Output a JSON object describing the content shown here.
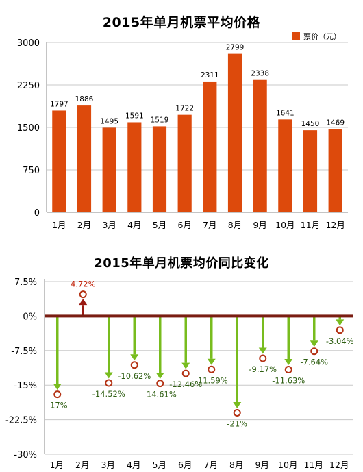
{
  "colors": {
    "bar": "#dd4a0c",
    "down_arrow": "#78bc1e",
    "up_arrow": "#9a1a12",
    "zero_line": "#7a1d12",
    "marker": "#b43214",
    "grid": "#c8c8c8",
    "axis": "#888888",
    "down_label": "#2e5e12",
    "up_label": "#c42a12"
  },
  "chart_data": [
    {
      "type": "bar",
      "title": "2015年单月机票平均价格",
      "legend": {
        "label": "票价（元）",
        "position": "top-right"
      },
      "categories": [
        "1月",
        "2月",
        "3月",
        "4月",
        "5月",
        "6月",
        "7月",
        "8月",
        "9月",
        "10月",
        "11月",
        "12月"
      ],
      "series": [
        {
          "name": "票价（元）",
          "values": [
            1797,
            1886,
            1495,
            1591,
            1519,
            1722,
            2311,
            2799,
            2338,
            1641,
            1450,
            1469
          ]
        }
      ],
      "data_labels": [
        "1797",
        "1886",
        "1495",
        "1591",
        "1519",
        "1722",
        "2311",
        "2799",
        "2338",
        "1641",
        "1450",
        "1469"
      ],
      "ylim": [
        0,
        3000
      ],
      "yticks": [
        0,
        750,
        1500,
        2250,
        3000
      ],
      "ytick_labels": [
        "0",
        "750",
        "1500",
        "2250",
        "3000"
      ],
      "grid": true
    },
    {
      "type": "scatter",
      "title": "2015年单月机票均价同比变化",
      "categories": [
        "1月",
        "2月",
        "3月",
        "4月",
        "5月",
        "6月",
        "7月",
        "8月",
        "9月",
        "10月",
        "11月",
        "12月"
      ],
      "values": [
        -17,
        4.72,
        -14.52,
        -10.62,
        -14.61,
        -12.46,
        -11.59,
        -21,
        -9.17,
        -11.63,
        -7.64,
        -3.04
      ],
      "data_labels": [
        "-17%",
        "4.72%",
        "-14.52%",
        "-10.62%",
        "-14.61%",
        "-12.46%",
        "-11.59%",
        "-21%",
        "-9.17%",
        "-11.63%",
        "-7.64%",
        "-3.04%"
      ],
      "ylim": [
        -30,
        7.5
      ],
      "yticks": [
        7.5,
        0,
        -7.5,
        -15,
        -22.5,
        -30
      ],
      "ytick_labels": [
        "7.5%",
        "0%",
        "-7.5%",
        "-15%",
        "-22.5%",
        "-30%"
      ],
      "grid": true
    }
  ]
}
